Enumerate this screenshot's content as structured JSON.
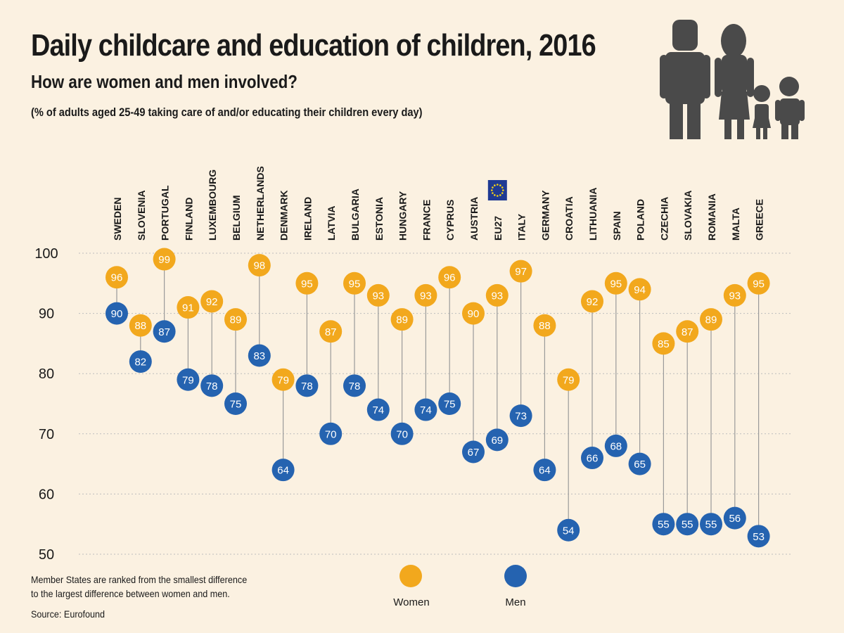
{
  "title": "Daily childcare and education of children, 2016",
  "subtitle": "How are women and men involved?",
  "note": "(% of adults aged 25-49 taking care of and/or educating their children every day)",
  "footnote": [
    "Member States are ranked from the smallest difference",
    "to the largest difference between women and men."
  ],
  "source": "Source: Eurofound",
  "icons": [
    "family-illustration-icon",
    "eu-flag-icon"
  ],
  "colors": {
    "women": "#f2a81d",
    "men": "#2563b0",
    "stem": "#9a9a9a",
    "grid": "#bdbdbd",
    "background": "#fbf1e1"
  },
  "chart_data": {
    "type": "scatter",
    "categories": [
      "SWEDEN",
      "SLOVENIA",
      "PORTUGAL",
      "FINLAND",
      "LUXEMBOURG",
      "BELGIUM",
      "NETHERLANDS",
      "DENMARK",
      "IRELAND",
      "LATVIA",
      "BULGARIA",
      "ESTONIA",
      "HUNGARY",
      "FRANCE",
      "CYPRUS",
      "AUSTRIA",
      "EU27",
      "ITALY",
      "GERMANY",
      "CROATIA",
      "LITHUANIA",
      "SPAIN",
      "POLAND",
      "CZECHIA",
      "SLOVAKIA",
      "ROMANIA",
      "MALTA",
      "GREECE"
    ],
    "series": [
      {
        "name": "Women",
        "values": [
          96,
          88,
          99,
          91,
          92,
          89,
          98,
          79,
          95,
          87,
          95,
          93,
          89,
          93,
          96,
          90,
          93,
          97,
          88,
          79,
          92,
          95,
          94,
          85,
          87,
          89,
          93,
          95
        ]
      },
      {
        "name": "Men",
        "values": [
          90,
          82,
          87,
          79,
          78,
          75,
          83,
          64,
          78,
          70,
          78,
          74,
          70,
          74,
          75,
          67,
          69,
          73,
          64,
          54,
          66,
          68,
          65,
          55,
          55,
          55,
          56,
          53
        ]
      }
    ],
    "ylim": [
      50,
      100
    ],
    "yticks": [
      50,
      60,
      70,
      80,
      90,
      100
    ],
    "grid": true,
    "legend_position": "bottom-center"
  }
}
